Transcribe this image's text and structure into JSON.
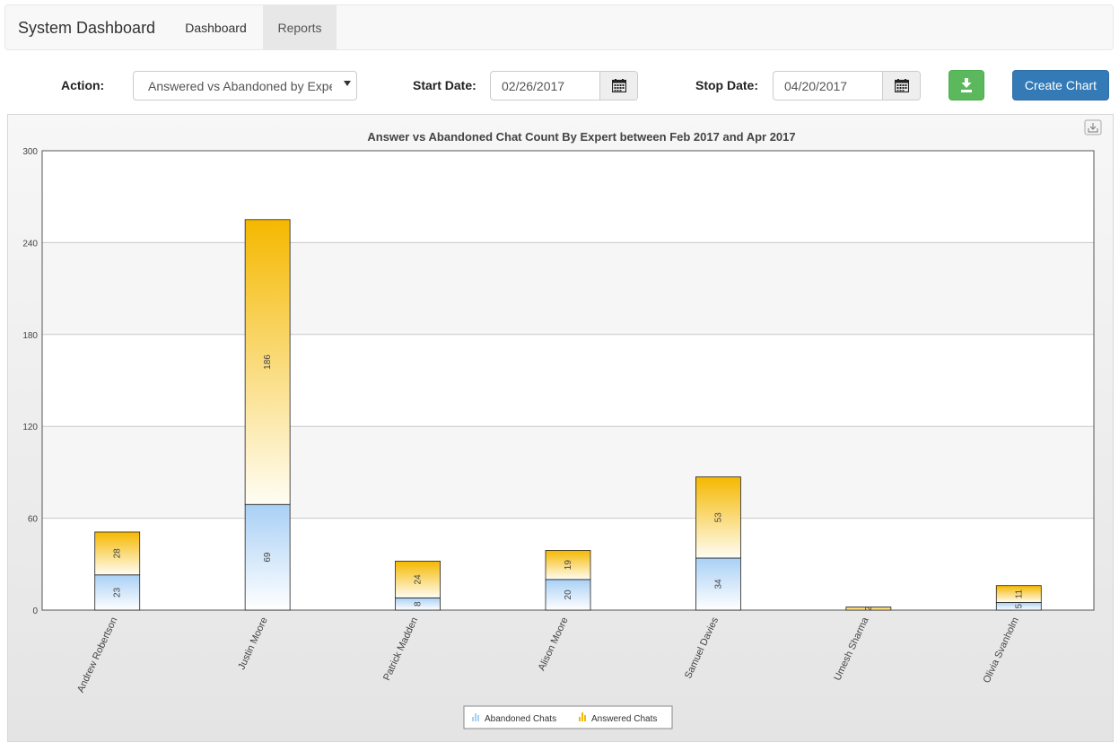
{
  "navbar": {
    "brand": "System Dashboard",
    "tabs": [
      {
        "label": "Dashboard"
      },
      {
        "label": "Reports"
      }
    ]
  },
  "controls": {
    "action_label": "Action:",
    "action_value": "Answered vs Abandoned by Expert",
    "start_label": "Start Date:",
    "start_value": "02/26/2017",
    "stop_label": "Stop Date:",
    "stop_value": "04/20/2017",
    "create_label": "Create Chart"
  },
  "colors": {
    "abandoned": "#a9d0f5",
    "answered": "#f5b800",
    "green_button": "#5cb85c",
    "blue_button": "#337ab7"
  },
  "chart_data": {
    "type": "bar",
    "stacked": true,
    "title": "Answer vs Abandoned Chat Count By Expert between Feb 2017 and Apr 2017",
    "categories": [
      "Andrew Robertson",
      "Justin Moore",
      "Patrick Madden",
      "Alison Moore",
      "Samuel Davies",
      "Umesh Sharma",
      "Olivia Svanholm"
    ],
    "series": [
      {
        "name": "Abandoned Chats",
        "values": [
          23,
          69,
          8,
          20,
          34,
          0,
          5
        ]
      },
      {
        "name": "Answered Chats",
        "values": [
          28,
          186,
          24,
          19,
          53,
          2,
          11
        ]
      }
    ],
    "ylim": [
      0,
      300
    ],
    "yticks": [
      0,
      60,
      120,
      180,
      240,
      300
    ],
    "legend": "bottom-center",
    "grid": true
  }
}
